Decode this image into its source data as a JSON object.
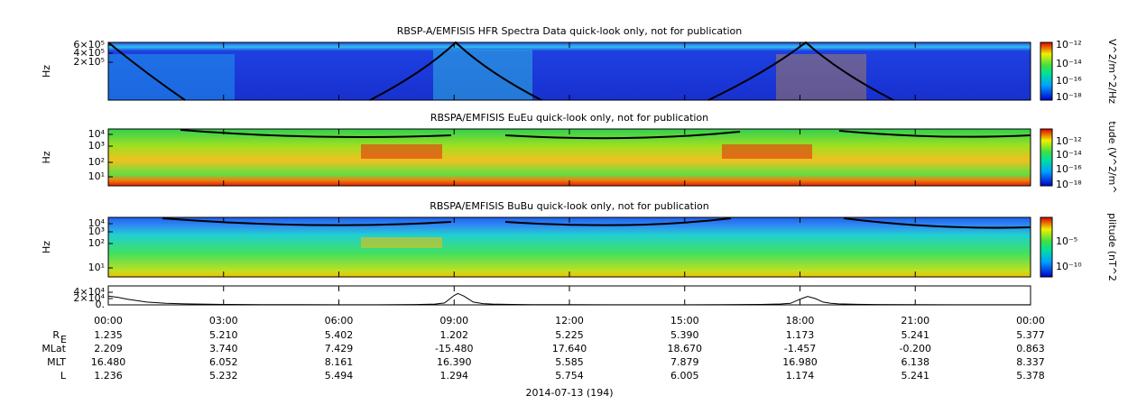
{
  "panels": [
    {
      "title": "RBSP-A/EMFISIS  HFR Spectra Data quick-look only, not for publication",
      "ylabel": "Hz",
      "yticks": [
        "6×10⁵",
        "4×10⁵",
        "2×10⁵"
      ],
      "colorbar_label": "V^2/m^2/Hz",
      "colorbar_ticks": [
        "10⁻¹²",
        "10⁻¹⁴",
        "10⁻¹⁶",
        "10⁻¹⁸"
      ]
    },
    {
      "title": "RBSPA/EMFISIS  EuEu quick-look only, not for publication",
      "ylabel": "Hz",
      "yticks": [
        "10⁴",
        "10³",
        "10²",
        "10¹"
      ],
      "colorbar_label": "tude (V^2/m^",
      "colorbar_ticks": [
        "10⁻¹²",
        "10⁻¹⁴",
        "10⁻¹⁶",
        "10⁻¹⁸"
      ]
    },
    {
      "title": "RBSPA/EMFISIS  BuBu quick-look only, not for publication",
      "ylabel": "Hz",
      "yticks": [
        "10⁴",
        "10³",
        "10²",
        "10¹"
      ],
      "colorbar_label": "plitude (nT^2",
      "colorbar_ticks": [
        "10⁻⁵",
        "10⁻¹⁰"
      ]
    }
  ],
  "chart_data": {
    "type": "line",
    "x": [
      0,
      0.25,
      0.5,
      1,
      1.5,
      2,
      3,
      4,
      5,
      6,
      7,
      8,
      8.5,
      8.75,
      9,
      9.1,
      9.25,
      9.5,
      9.75,
      10,
      10.5,
      11,
      12,
      13,
      14,
      15,
      16,
      17,
      17.5,
      17.75,
      18,
      18.2,
      18.4,
      18.6,
      18.8,
      19,
      19.5,
      20,
      21,
      22,
      23,
      24
    ],
    "series": [
      {
        "color": "#000000",
        "values": [
          28000,
          24000,
          18000,
          9000,
          5000,
          3000,
          1400,
          800,
          500,
          350,
          400,
          1000,
          2500,
          6000,
          30000,
          36000,
          28000,
          9000,
          4000,
          2500,
          1400,
          900,
          500,
          350,
          300,
          350,
          600,
          1400,
          2800,
          5000,
          18000,
          27000,
          20000,
          9000,
          5000,
          3200,
          1800,
          1100,
          600,
          400,
          350,
          400
        ]
      }
    ],
    "xlim": [
      0,
      24
    ],
    "xticks": [
      {
        "value": 0,
        "label": "00:00"
      },
      {
        "value": 3,
        "label": "03:00"
      },
      {
        "value": 6,
        "label": "06:00"
      },
      {
        "value": 9,
        "label": "09:00"
      },
      {
        "value": 12,
        "label": "12:00"
      },
      {
        "value": 15,
        "label": "15:00"
      },
      {
        "value": 18,
        "label": "18:00"
      },
      {
        "value": 21,
        "label": "21:00"
      },
      {
        "value": 24,
        "label": "00:00"
      }
    ],
    "ylim": [
      0,
      60000
    ],
    "yticks": [
      {
        "value": 40000,
        "label": "4×10⁴"
      },
      {
        "value": 20000,
        "label": "2×10⁴"
      },
      {
        "value": 0,
        "label": "0."
      }
    ],
    "xlabel": "2014-07-13 (194)"
  },
  "ephemeris": [
    {
      "label": "R",
      "sub": "E",
      "values": [
        "1.235",
        "5.210",
        "5.402",
        "1.202",
        "5.225",
        "5.390",
        "1.173",
        "5.241",
        "5.377"
      ]
    },
    {
      "label": "MLat",
      "values": [
        "2.209",
        "3.740",
        "7.429",
        "-15.480",
        "17.640",
        "18.670",
        "-1.457",
        "-0.200",
        "0.863"
      ]
    },
    {
      "label": "MLT",
      "values": [
        "16.480",
        "6.052",
        "8.161",
        "16.390",
        "5.585",
        "7.879",
        "16.980",
        "6.138",
        "8.337"
      ]
    },
    {
      "label": "L",
      "values": [
        "1.236",
        "5.232",
        "5.494",
        "1.294",
        "5.754",
        "6.005",
        "1.174",
        "5.241",
        "5.378"
      ]
    }
  ]
}
